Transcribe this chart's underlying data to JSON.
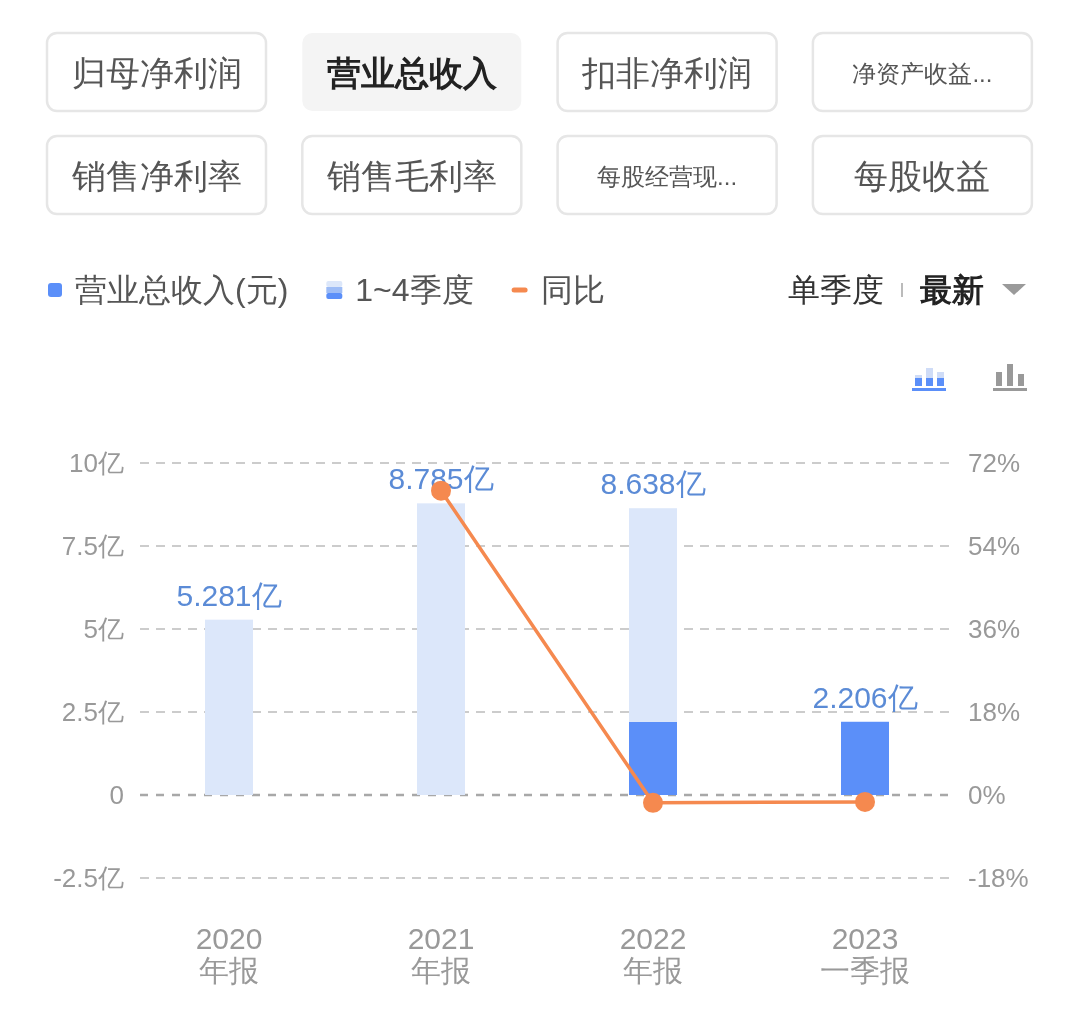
{
  "chart_data": [
    {
      "type": "other",
      "annotations": [
        "归母净利润",
        "营业总收入",
        "扣非净利润",
        "净资产收益...",
        "销售净利率",
        "销售毛利率",
        "每股经营现...",
        "每股收益"
      ]
    },
    {
      "type": "bar",
      "stacked": true,
      "categories": [
        "2020\n年报",
        "2021\n年报",
        "2022\n年报",
        "2023\n一季报"
      ],
      "series": [
        {
          "name": "营业总收入(元)",
          "color": "#5b8ff9",
          "values": [
            null,
            null,
            2.2,
            2.206
          ]
        },
        {
          "name": "1~4季度",
          "color": "#dce7fa",
          "values": [
            5.281,
            8.785,
            6.438,
            null
          ]
        },
        {
          "name": "同比",
          "type": "line",
          "axis": "y2",
          "color": "#f5894f",
          "values": [
            null,
            66,
            -1.7,
            -1.5
          ]
        }
      ],
      "totals": [
        "5.281亿",
        "8.785亿",
        "8.638亿",
        "2.206亿"
      ],
      "ylim": [
        -2.5,
        10
      ],
      "yticks": [
        {
          "value": -2.5,
          "label": "-2.5亿"
        },
        0,
        {
          "value": 2.5,
          "label": "2.5亿"
        },
        {
          "value": 5,
          "label": "5亿"
        },
        {
          "value": 7.5,
          "label": "7.5亿"
        },
        {
          "value": 10,
          "label": "10亿"
        }
      ],
      "y2lim": [
        -18,
        72
      ],
      "y2ticks": [
        {
          "value": -18,
          "label": "-18%"
        },
        {
          "value": 0,
          "label": "0%"
        },
        {
          "value": 18,
          "label": "18%"
        },
        {
          "value": 36,
          "label": "36%"
        },
        {
          "value": 54,
          "label": "54%"
        },
        {
          "value": 72,
          "label": "72%"
        }
      ],
      "ref_lines": [
        {
          "axis": "y",
          "value": 0,
          "color": "#a8a8a8",
          "line_style": "dashed"
        }
      ],
      "grid": "y",
      "legend": "top left",
      "marker": "circle",
      "line_style": "solid",
      "annotations": [
        "单季度",
        "最新"
      ]
    }
  ]
}
